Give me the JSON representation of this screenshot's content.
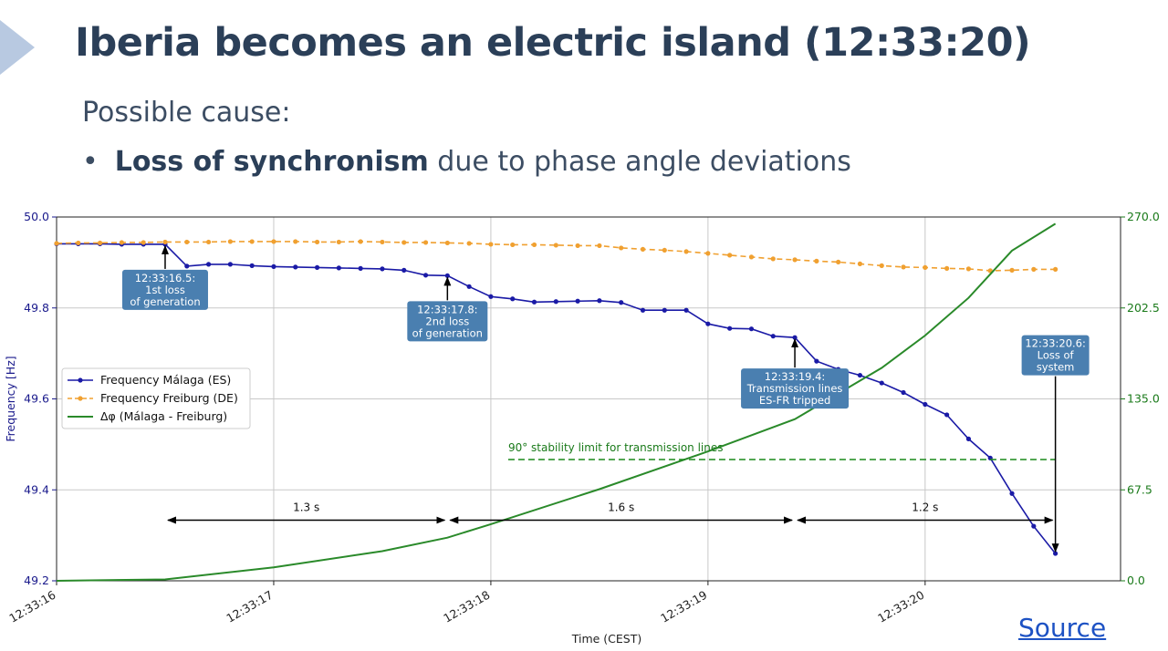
{
  "slide": {
    "title": "Iberia becomes an electric island (12:33:20)",
    "subtitle": "Possible cause:",
    "bullet_bold": "Loss of synchronism",
    "bullet_rest": " due to phase angle deviations",
    "source_link": "Source"
  },
  "colors": {
    "title": "#2b3f58",
    "malaga": "#1a1aa6",
    "freiburg": "#f0a030",
    "dphi": "#2a8a2a",
    "annotation_box": "#4a7fb0",
    "right_axis": "#1a7a1a",
    "left_axis": "#1a1a8c"
  },
  "chart_data": {
    "type": "line",
    "xlabel": "Time (CEST)",
    "ylabel": "Frequency [Hz]",
    "ylabel_right": "",
    "xlim": [
      16.0,
      20.9
    ],
    "ylim": [
      49.2,
      50.0
    ],
    "ylim_right": [
      0.0,
      270.0
    ],
    "x_ticks": [
      16,
      17,
      18,
      19,
      20
    ],
    "x_tick_labels": [
      "12:33:16",
      "12:33:17",
      "12:33:18",
      "12:33:19",
      "12:33:20"
    ],
    "y_ticks": [
      "49.2",
      "49.4",
      "49.6",
      "49.8",
      "50.0"
    ],
    "y_ticks_right": [
      "0.0",
      "67.5",
      "135.0",
      "202.5",
      "270.0"
    ],
    "grid": true,
    "legend_position": "center-left",
    "series": [
      {
        "name": "Frequency Málaga (ES)",
        "axis": "left",
        "style": "solid-dots",
        "x": [
          16.0,
          16.1,
          16.2,
          16.3,
          16.4,
          16.5,
          16.6,
          16.7,
          16.8,
          16.9,
          17.0,
          17.1,
          17.2,
          17.3,
          17.4,
          17.5,
          17.6,
          17.7,
          17.8,
          17.9,
          18.0,
          18.1,
          18.2,
          18.3,
          18.4,
          18.5,
          18.6,
          18.7,
          18.8,
          18.9,
          19.0,
          19.1,
          19.2,
          19.3,
          19.4,
          19.5,
          19.6,
          19.7,
          19.8,
          19.9,
          20.0,
          20.1,
          20.2,
          20.3,
          20.4,
          20.5,
          20.6
        ],
        "values": [
          49.941,
          49.941,
          49.941,
          49.94,
          49.94,
          49.94,
          49.892,
          49.896,
          49.896,
          49.893,
          49.891,
          49.89,
          49.889,
          49.888,
          49.887,
          49.886,
          49.883,
          49.872,
          49.871,
          49.847,
          49.825,
          49.82,
          49.813,
          49.814,
          49.815,
          49.816,
          49.812,
          49.795,
          49.795,
          49.795,
          49.765,
          49.755,
          49.754,
          49.738,
          49.735,
          49.683,
          49.665,
          49.652,
          49.635,
          49.614,
          49.588,
          49.565,
          49.512,
          49.47,
          49.392,
          49.32,
          49.26
        ]
      },
      {
        "name": "Frequency Freiburg (DE)",
        "axis": "left",
        "style": "dashed-dots",
        "x": [
          16.0,
          16.1,
          16.2,
          16.3,
          16.4,
          16.5,
          16.6,
          16.7,
          16.8,
          16.9,
          17.0,
          17.1,
          17.2,
          17.3,
          17.4,
          17.5,
          17.6,
          17.7,
          17.8,
          17.9,
          18.0,
          18.1,
          18.2,
          18.3,
          18.4,
          18.5,
          18.6,
          18.7,
          18.8,
          18.9,
          19.0,
          19.1,
          19.2,
          19.3,
          19.4,
          19.5,
          19.6,
          19.7,
          19.8,
          19.9,
          20.0,
          20.1,
          20.2,
          20.3,
          20.4,
          20.5,
          20.6
        ],
        "values": [
          49.942,
          49.943,
          49.943,
          49.944,
          49.944,
          49.945,
          49.945,
          49.945,
          49.946,
          49.946,
          49.946,
          49.946,
          49.945,
          49.945,
          49.946,
          49.945,
          49.944,
          49.944,
          49.943,
          49.942,
          49.94,
          49.939,
          49.939,
          49.938,
          49.937,
          49.937,
          49.932,
          49.929,
          49.927,
          49.924,
          49.92,
          49.916,
          49.912,
          49.908,
          49.906,
          49.903,
          49.901,
          49.897,
          49.893,
          49.89,
          49.889,
          49.887,
          49.886,
          49.882,
          49.883,
          49.885,
          49.885
        ]
      },
      {
        "name": "Δφ (Málaga - Freiburg)",
        "axis": "right",
        "style": "solid",
        "x": [
          16.0,
          16.5,
          17.0,
          17.5,
          17.8,
          18.0,
          18.5,
          19.0,
          19.4,
          19.8,
          20.0,
          20.2,
          20.4,
          20.6
        ],
        "values": [
          0,
          1,
          10,
          22,
          32,
          42,
          68,
          96,
          120,
          158,
          182,
          210,
          245,
          265
        ]
      }
    ],
    "reference_lines": [
      {
        "label": "90° stability limit for transmission lines",
        "axis": "right",
        "value": 90,
        "x_range": [
          18.08,
          20.6
        ]
      }
    ],
    "annotations": [
      {
        "text": [
          "12:33:16.5:",
          "1st loss",
          "of generation"
        ],
        "x": 16.5,
        "y": 49.94
      },
      {
        "text": [
          "12:33:17.8:",
          "2nd loss",
          "of generation"
        ],
        "x": 17.8,
        "y": 49.871
      },
      {
        "text": [
          "12:33:19.4:",
          "Transmission lines",
          "ES-FR tripped"
        ],
        "x": 19.4,
        "y": 49.735
      },
      {
        "text": [
          "12:33:20.6:",
          "Loss of",
          "system"
        ],
        "x": 20.6,
        "y": 49.26
      }
    ],
    "intervals": [
      {
        "label": "1.3 s",
        "from": 16.5,
        "to": 17.8
      },
      {
        "label": "1.6 s",
        "from": 17.8,
        "to": 19.4
      },
      {
        "label": "1.2 s",
        "from": 19.4,
        "to": 20.6
      }
    ]
  }
}
